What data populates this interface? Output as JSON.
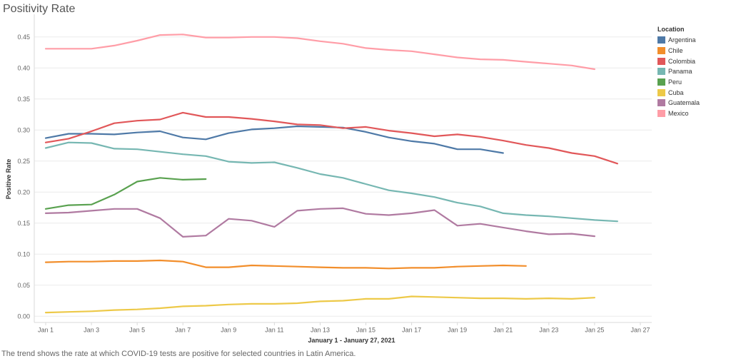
{
  "title": "Positivity Rate",
  "caption": "The trend shows the rate at which COVID-19 tests are positive for selected countries in Latin America.",
  "chart_data": {
    "type": "line",
    "title": "Positivity Rate",
    "xlabel": "January 1 - January 27, 2021",
    "ylabel": "Positive Rate",
    "x_ticks": [
      "Jan 1",
      "Jan 3",
      "Jan 5",
      "Jan 7",
      "Jan 9",
      "Jan 11",
      "Jan 13",
      "Jan 15",
      "Jan 17",
      "Jan 19",
      "Jan 21",
      "Jan 23",
      "Jan 25",
      "Jan 27"
    ],
    "y_ticks": [
      "0.00",
      "0.05",
      "0.10",
      "0.15",
      "0.20",
      "0.25",
      "0.30",
      "0.35",
      "0.40",
      "0.45"
    ],
    "xlim": [
      0.5,
      27.5
    ],
    "ylim": [
      -0.01,
      0.475
    ],
    "grid": true,
    "legend_title": "Location",
    "legend_position": "right",
    "series": [
      {
        "name": "Argentina",
        "color": "#4e79a7",
        "x": [
          1,
          2,
          3,
          4,
          5,
          6,
          7,
          8,
          9,
          10,
          11,
          12,
          13,
          14,
          15,
          16,
          17,
          18,
          19,
          20,
          21
        ],
        "values": [
          0.287,
          0.294,
          0.294,
          0.293,
          0.296,
          0.298,
          0.288,
          0.285,
          0.295,
          0.301,
          0.303,
          0.306,
          0.305,
          0.304,
          0.297,
          0.288,
          0.282,
          0.278,
          0.269,
          0.269,
          0.263
        ]
      },
      {
        "name": "Chile",
        "color": "#f28e2b",
        "x": [
          1,
          2,
          3,
          4,
          5,
          6,
          7,
          8,
          9,
          10,
          11,
          12,
          13,
          14,
          15,
          16,
          17,
          18,
          19,
          20,
          21,
          22
        ],
        "values": [
          0.087,
          0.088,
          0.088,
          0.089,
          0.089,
          0.09,
          0.088,
          0.079,
          0.079,
          0.082,
          0.081,
          0.08,
          0.079,
          0.078,
          0.078,
          0.077,
          0.078,
          0.078,
          0.08,
          0.081,
          0.082,
          0.081
        ]
      },
      {
        "name": "Colombia",
        "color": "#e15759",
        "x": [
          1,
          2,
          3,
          4,
          5,
          6,
          7,
          8,
          9,
          10,
          11,
          12,
          13,
          14,
          15,
          16,
          17,
          18,
          19,
          20,
          21,
          22,
          23,
          24,
          25,
          26
        ],
        "values": [
          0.28,
          0.286,
          0.298,
          0.311,
          0.315,
          0.317,
          0.328,
          0.321,
          0.321,
          0.318,
          0.314,
          0.309,
          0.308,
          0.303,
          0.305,
          0.299,
          0.295,
          0.29,
          0.293,
          0.289,
          0.283,
          0.276,
          0.271,
          0.263,
          0.258,
          0.246
        ]
      },
      {
        "name": "Panama",
        "color": "#76b7b2",
        "x": [
          1,
          2,
          3,
          4,
          5,
          6,
          7,
          8,
          9,
          10,
          11,
          12,
          13,
          14,
          15,
          16,
          17,
          18,
          19,
          20,
          21,
          22,
          23,
          24,
          25,
          26
        ],
        "values": [
          0.271,
          0.28,
          0.279,
          0.27,
          0.269,
          0.265,
          0.261,
          0.258,
          0.249,
          0.247,
          0.248,
          0.239,
          0.229,
          0.223,
          0.213,
          0.203,
          0.198,
          0.192,
          0.183,
          0.177,
          0.166,
          0.163,
          0.161,
          0.158,
          0.155,
          0.153
        ]
      },
      {
        "name": "Peru",
        "color": "#59a14f",
        "x": [
          1,
          2,
          3,
          4,
          5,
          6,
          7,
          8
        ],
        "values": [
          0.173,
          0.179,
          0.18,
          0.196,
          0.217,
          0.223,
          0.22,
          0.221
        ]
      },
      {
        "name": "Cuba",
        "color": "#edc948",
        "x": [
          1,
          2,
          3,
          4,
          5,
          6,
          7,
          8,
          9,
          10,
          11,
          12,
          13,
          14,
          15,
          16,
          17,
          18,
          19,
          20,
          21,
          22,
          23,
          24,
          25
        ],
        "values": [
          0.006,
          0.007,
          0.008,
          0.01,
          0.011,
          0.013,
          0.016,
          0.017,
          0.019,
          0.02,
          0.02,
          0.021,
          0.024,
          0.025,
          0.028,
          0.028,
          0.032,
          0.031,
          0.03,
          0.029,
          0.029,
          0.028,
          0.029,
          0.028,
          0.03
        ]
      },
      {
        "name": "Guatemala",
        "color": "#b07aa1",
        "x": [
          1,
          2,
          3,
          4,
          5,
          6,
          7,
          8,
          9,
          10,
          11,
          12,
          13,
          14,
          15,
          16,
          17,
          18,
          19,
          20,
          21,
          22,
          23,
          24,
          25
        ],
        "values": [
          0.166,
          0.167,
          0.17,
          0.173,
          0.173,
          0.158,
          0.128,
          0.13,
          0.157,
          0.154,
          0.144,
          0.17,
          0.173,
          0.174,
          0.165,
          0.163,
          0.166,
          0.171,
          0.146,
          0.149,
          0.143,
          0.137,
          0.132,
          0.133,
          0.129
        ]
      },
      {
        "name": "Mexico",
        "color": "#ff9da7",
        "x": [
          1,
          2,
          3,
          4,
          5,
          6,
          7,
          8,
          9,
          10,
          11,
          12,
          13,
          14,
          15,
          16,
          17,
          18,
          19,
          20,
          21,
          22,
          23,
          24,
          25
        ],
        "values": [
          0.431,
          0.431,
          0.431,
          0.436,
          0.444,
          0.453,
          0.454,
          0.449,
          0.449,
          0.45,
          0.45,
          0.448,
          0.443,
          0.439,
          0.432,
          0.429,
          0.427,
          0.422,
          0.417,
          0.414,
          0.413,
          0.41,
          0.407,
          0.404,
          0.398
        ]
      }
    ]
  }
}
